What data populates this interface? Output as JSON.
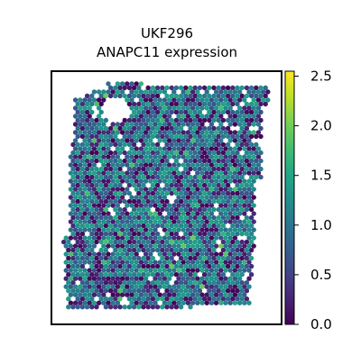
{
  "chart_data": {
    "type": "scatter",
    "title_line1": "UKF296",
    "title_line2": "ANAPC11 expression",
    "colormap": "viridis",
    "color_range": [
      0,
      2.55
    ],
    "colorbar_ticks": [
      "0.0",
      "0.5",
      "1.0",
      "1.5",
      "2.0",
      "2.5"
    ],
    "colorbar_tick_values": [
      0,
      0.5,
      1.0,
      1.5,
      2.0,
      2.5
    ],
    "grid": false,
    "legend": "colorbar-right",
    "point_shape": "hexagon",
    "expression_summary": {
      "mean": 1.05,
      "low_fraction": 0.3,
      "max_value": 2.55
    }
  }
}
